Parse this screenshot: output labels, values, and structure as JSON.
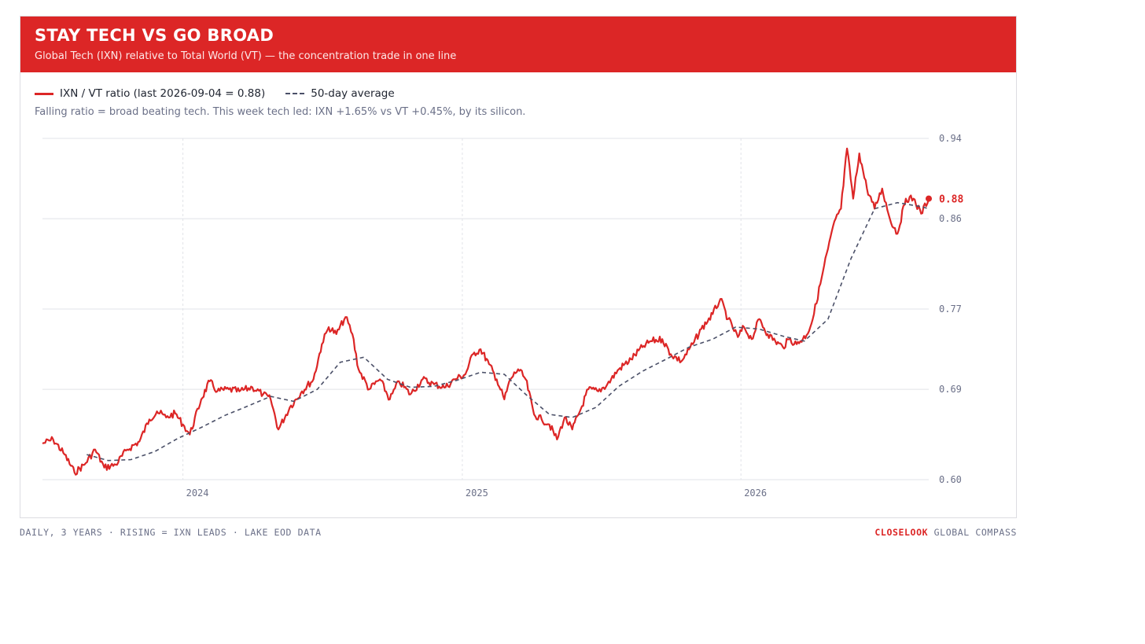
{
  "header": {
    "title": "STAY TECH VS GO BROAD",
    "subtitle": "Global Tech (IXN) relative to Total World (VT) — the concentration trade in one line"
  },
  "legend": {
    "ratio_label": "IXN / VT ratio (last 2026-09-04 = 0.88)",
    "avg_label": "50-day average"
  },
  "note": "Falling ratio = broad beating tech. This week tech led: IXN +1.65% vs VT +0.45%, by its silicon.",
  "footer": {
    "left": "DAILY, 3 YEARS · RISING = IXN LEADS · LAKE EOD DATA",
    "brand": "CLOSELOOK",
    "right": "GLOBAL COMPASS"
  },
  "colors": {
    "accent": "#dc2626",
    "average": "#4b5068",
    "grid": "#e1e3e8",
    "tick": "#6b7088"
  },
  "chart_data": {
    "type": "line",
    "x_range": [
      "2023-07-01",
      "2026-09-04"
    ],
    "ylim": [
      0.6,
      0.94
    ],
    "yticks": [
      "0.94",
      "0.86",
      "0.77",
      "0.69",
      "0.60"
    ],
    "ytick_values": [
      0.94,
      0.86,
      0.77,
      0.69,
      0.6
    ],
    "xticks": [
      "2024",
      "2025",
      "2026"
    ],
    "xtick_dates": [
      "2024-01-01",
      "2025-01-01",
      "2026-01-01"
    ],
    "last_value_label": "0.88",
    "last_value": 0.88,
    "grid": true,
    "series": [
      {
        "key": "ratio",
        "points": [
          [
            "2023-07-01",
            0.636
          ],
          [
            "2023-07-15",
            0.64
          ],
          [
            "2023-07-30",
            0.625
          ],
          [
            "2023-08-12",
            0.607
          ],
          [
            "2023-08-25",
            0.615
          ],
          [
            "2023-09-08",
            0.63
          ],
          [
            "2023-09-20",
            0.612
          ],
          [
            "2023-10-05",
            0.615
          ],
          [
            "2023-10-20",
            0.63
          ],
          [
            "2023-11-05",
            0.638
          ],
          [
            "2023-11-18",
            0.66
          ],
          [
            "2023-11-28",
            0.668
          ],
          [
            "2023-12-10",
            0.662
          ],
          [
            "2023-12-22",
            0.666
          ],
          [
            "2024-01-01",
            0.655
          ],
          [
            "2024-01-10",
            0.645
          ],
          [
            "2024-01-25",
            0.68
          ],
          [
            "2024-02-05",
            0.698
          ],
          [
            "2024-02-15",
            0.688
          ],
          [
            "2024-03-01",
            0.69
          ],
          [
            "2024-03-15",
            0.688
          ],
          [
            "2024-04-01",
            0.692
          ],
          [
            "2024-04-15",
            0.685
          ],
          [
            "2024-04-25",
            0.68
          ],
          [
            "2024-05-05",
            0.65
          ],
          [
            "2024-05-20",
            0.672
          ],
          [
            "2024-06-05",
            0.688
          ],
          [
            "2024-06-20",
            0.7
          ],
          [
            "2024-07-01",
            0.735
          ],
          [
            "2024-07-10",
            0.752
          ],
          [
            "2024-07-20",
            0.745
          ],
          [
            "2024-08-01",
            0.762
          ],
          [
            "2024-08-10",
            0.745
          ],
          [
            "2024-08-18",
            0.71
          ],
          [
            "2024-09-01",
            0.69
          ],
          [
            "2024-09-15",
            0.7
          ],
          [
            "2024-09-28",
            0.68
          ],
          [
            "2024-10-10",
            0.698
          ],
          [
            "2024-10-25",
            0.685
          ],
          [
            "2024-11-10",
            0.7
          ],
          [
            "2024-11-25",
            0.695
          ],
          [
            "2024-12-10",
            0.692
          ],
          [
            "2024-12-22",
            0.7
          ],
          [
            "2025-01-05",
            0.705
          ],
          [
            "2025-01-15",
            0.725
          ],
          [
            "2025-01-25",
            0.73
          ],
          [
            "2025-02-05",
            0.715
          ],
          [
            "2025-02-15",
            0.7
          ],
          [
            "2025-02-25",
            0.68
          ],
          [
            "2025-03-05",
            0.7
          ],
          [
            "2025-03-15",
            0.71
          ],
          [
            "2025-03-25",
            0.7
          ],
          [
            "2025-04-05",
            0.665
          ],
          [
            "2025-04-15",
            0.66
          ],
          [
            "2025-04-25",
            0.655
          ],
          [
            "2025-05-05",
            0.64
          ],
          [
            "2025-05-15",
            0.662
          ],
          [
            "2025-05-25",
            0.65
          ],
          [
            "2025-06-05",
            0.67
          ],
          [
            "2025-06-15",
            0.69
          ],
          [
            "2025-06-28",
            0.688
          ],
          [
            "2025-07-10",
            0.695
          ],
          [
            "2025-07-25",
            0.71
          ],
          [
            "2025-08-10",
            0.72
          ],
          [
            "2025-08-25",
            0.732
          ],
          [
            "2025-09-05",
            0.738
          ],
          [
            "2025-09-20",
            0.74
          ],
          [
            "2025-10-01",
            0.725
          ],
          [
            "2025-10-15",
            0.718
          ],
          [
            "2025-10-30",
            0.735
          ],
          [
            "2025-11-10",
            0.75
          ],
          [
            "2025-11-25",
            0.765
          ],
          [
            "2025-12-05",
            0.78
          ],
          [
            "2025-12-15",
            0.76
          ],
          [
            "2025-12-28",
            0.742
          ],
          [
            "2026-01-05",
            0.752
          ],
          [
            "2026-01-15",
            0.74
          ],
          [
            "2026-01-25",
            0.76
          ],
          [
            "2026-02-05",
            0.745
          ],
          [
            "2026-02-15",
            0.738
          ],
          [
            "2026-02-25",
            0.732
          ],
          [
            "2026-03-05",
            0.74
          ],
          [
            "2026-03-15",
            0.735
          ],
          [
            "2026-03-28",
            0.744
          ],
          [
            "2026-04-05",
            0.76
          ],
          [
            "2026-04-15",
            0.795
          ],
          [
            "2026-04-25",
            0.83
          ],
          [
            "2026-05-05",
            0.86
          ],
          [
            "2026-05-12",
            0.87
          ],
          [
            "2026-05-20",
            0.93
          ],
          [
            "2026-05-28",
            0.88
          ],
          [
            "2026-06-05",
            0.925
          ],
          [
            "2026-06-15",
            0.89
          ],
          [
            "2026-06-25",
            0.87
          ],
          [
            "2026-07-05",
            0.89
          ],
          [
            "2026-07-15",
            0.86
          ],
          [
            "2026-07-25",
            0.845
          ],
          [
            "2026-08-05",
            0.88
          ],
          [
            "2026-08-15",
            0.88
          ],
          [
            "2026-08-25",
            0.865
          ],
          [
            "2026-09-04",
            0.88
          ]
        ]
      },
      {
        "key": "avg",
        "points": [
          [
            "2023-08-28",
            0.625
          ],
          [
            "2023-09-25",
            0.619
          ],
          [
            "2023-10-25",
            0.62
          ],
          [
            "2023-11-25",
            0.628
          ],
          [
            "2023-12-25",
            0.641
          ],
          [
            "2024-01-25",
            0.652
          ],
          [
            "2024-02-25",
            0.664
          ],
          [
            "2024-03-25",
            0.673
          ],
          [
            "2024-04-25",
            0.683
          ],
          [
            "2024-05-25",
            0.678
          ],
          [
            "2024-06-25",
            0.69
          ],
          [
            "2024-07-25",
            0.717
          ],
          [
            "2024-08-25",
            0.722
          ],
          [
            "2024-09-25",
            0.7
          ],
          [
            "2024-10-25",
            0.692
          ],
          [
            "2024-11-25",
            0.693
          ],
          [
            "2024-12-25",
            0.699
          ],
          [
            "2025-01-25",
            0.707
          ],
          [
            "2025-02-25",
            0.705
          ],
          [
            "2025-03-25",
            0.685
          ],
          [
            "2025-04-25",
            0.665
          ],
          [
            "2025-05-25",
            0.662
          ],
          [
            "2025-06-25",
            0.672
          ],
          [
            "2025-07-25",
            0.693
          ],
          [
            "2025-08-25",
            0.708
          ],
          [
            "2025-09-25",
            0.72
          ],
          [
            "2025-10-25",
            0.732
          ],
          [
            "2025-11-25",
            0.74
          ],
          [
            "2025-12-25",
            0.752
          ],
          [
            "2026-01-25",
            0.75
          ],
          [
            "2026-02-25",
            0.743
          ],
          [
            "2026-03-25",
            0.738
          ],
          [
            "2026-04-25",
            0.76
          ],
          [
            "2026-05-25",
            0.82
          ],
          [
            "2026-06-25",
            0.87
          ],
          [
            "2026-07-25",
            0.876
          ],
          [
            "2026-08-25",
            0.872
          ],
          [
            "2026-09-04",
            0.87
          ]
        ]
      }
    ]
  }
}
